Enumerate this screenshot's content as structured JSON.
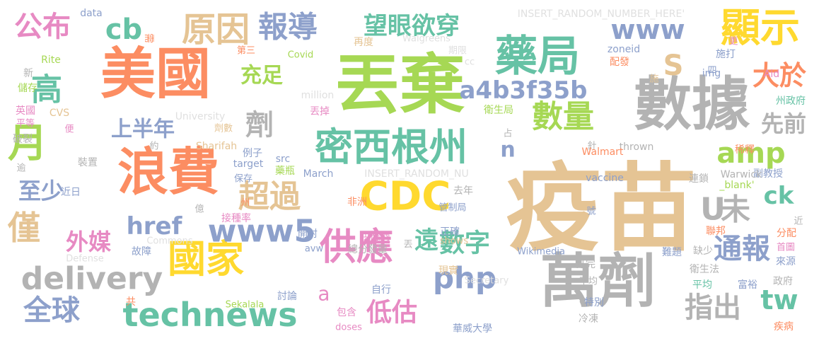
{
  "word_cloud": {
    "background_color": "#ffffff",
    "words": [
      {
        "text": "疫苗",
        "color": "#e5c494"
      },
      {
        "text": "丟棄",
        "color": "#a6d854"
      },
      {
        "text": "數據",
        "color": "#b3b3b3"
      },
      {
        "text": "美國",
        "color": "#fc8d62"
      },
      {
        "text": "萬劑",
        "color": "#b3b3b3"
      },
      {
        "text": "浪費",
        "color": "#fc8d62"
      },
      {
        "text": "藥局",
        "color": "#66c2a5"
      },
      {
        "text": "密西根州",
        "color": "#66c2a5"
      },
      {
        "text": "顯示",
        "color": "#ffd92f"
      },
      {
        "text": "CDC",
        "color": "#ffd92f"
      },
      {
        "text": "國家",
        "color": "#ffd92f"
      },
      {
        "text": "供應",
        "color": "#e78ac3"
      },
      {
        "text": "原因",
        "color": "#e5c494"
      },
      {
        "text": "delivery",
        "color": "#b3b3b3"
      },
      {
        "text": "technews",
        "color": "#66c2a5"
      },
      {
        "text": "www5",
        "color": "#8da0cb"
      },
      {
        "text": "數量",
        "color": "#a6d854"
      },
      {
        "text": "報導",
        "color": "#8da0cb"
      },
      {
        "text": "月",
        "color": "#a6d854"
      },
      {
        "text": "php",
        "color": "#8da0cb"
      },
      {
        "text": "a4b3f35b",
        "color": "#8da0cb"
      },
      {
        "text": "www",
        "color": "#8da0cb"
      },
      {
        "text": "超過",
        "color": "#e5c494"
      },
      {
        "text": "全球",
        "color": "#8da0cb"
      },
      {
        "text": "通報",
        "color": "#8da0cb"
      },
      {
        "text": "公布",
        "color": "#e78ac3"
      },
      {
        "text": "望眼欲穿",
        "color": "#66c2a5"
      },
      {
        "text": "cb",
        "color": "#66c2a5"
      },
      {
        "text": "高",
        "color": "#66c2a5"
      },
      {
        "text": "劑",
        "color": "#b3b3b3"
      },
      {
        "text": "指出",
        "color": "#b3b3b3"
      },
      {
        "text": "數字",
        "color": "#66c2a5"
      },
      {
        "text": "低估",
        "color": "#e78ac3"
      },
      {
        "text": "amp",
        "color": "#a6d854"
      },
      {
        "text": "僅",
        "color": "#e5c494"
      },
      {
        "text": "tw",
        "color": "#66c2a5"
      },
      {
        "text": "未",
        "color": "#b3b3b3"
      },
      {
        "text": "大於",
        "color": "#fc8d62"
      },
      {
        "text": "上半年",
        "color": "#8da0cb"
      },
      {
        "text": "遠",
        "color": "#66c2a5"
      },
      {
        "text": "href",
        "color": "#8da0cb"
      },
      {
        "text": "至少",
        "color": "#8da0cb"
      },
      {
        "text": "外媒",
        "color": "#e78ac3"
      },
      {
        "text": "充足",
        "color": "#a6d854"
      },
      {
        "text": "先前",
        "color": "#b3b3b3"
      },
      {
        "text": "S",
        "color": "#e5c494"
      },
      {
        "text": "U",
        "color": "#b3b3b3"
      },
      {
        "text": "ck",
        "color": "#66c2a5"
      },
      {
        "text": "n",
        "color": "#8da0cb"
      },
      {
        "text": "a",
        "color": "#e78ac3"
      },
      {
        "text": "INSERT_RANDOM_NUMBER_HERE'",
        "color": "#e0e0e0"
      },
      {
        "text": "INSERT_RANDOM_NU",
        "color": "#e0e0e0"
      },
      {
        "text": "data",
        "color": "#8da0cb"
      },
      {
        "text": "需",
        "color": "#fc8d62"
      },
      {
        "text": "Walgreens",
        "color": "#e0e0e0"
      },
      {
        "text": "zoneid",
        "color": "#8da0cb"
      },
      {
        "text": "施打",
        "color": "#8da0cb"
      },
      {
        "text": "Rite",
        "color": "#a6d854"
      },
      {
        "text": "第三",
        "color": "#fc8d62"
      },
      {
        "text": "Covid",
        "color": "#a6d854"
      },
      {
        "text": "再度",
        "color": "#e5c494"
      },
      {
        "text": "期限",
        "color": "#e0e0e0"
      },
      {
        "text": "cc",
        "color": "#e0e0e0"
      },
      {
        "text": "配發",
        "color": "#fc8d62"
      },
      {
        "text": "img",
        "color": "#8da0cb"
      },
      {
        "text": "Aid",
        "color": "#e78ac3"
      },
      {
        "text": "更",
        "color": "#e78ac3"
      },
      {
        "text": "四",
        "color": "#8da0cb"
      },
      {
        "text": "施",
        "color": "#e5c494"
      },
      {
        "text": "新",
        "color": "#b3b3b3"
      },
      {
        "text": "儲存",
        "color": "#a6d854"
      },
      {
        "text": "million",
        "color": "#e0e0e0"
      },
      {
        "text": "英國",
        "color": "#e78ac3"
      },
      {
        "text": "平等",
        "color": "#e78ac3"
      },
      {
        "text": "CVS",
        "color": "#e5c494"
      },
      {
        "text": "University",
        "color": "#e0e0e0"
      },
      {
        "text": "丟掉",
        "color": "#e78ac3"
      },
      {
        "text": "衛生局",
        "color": "#a6d854"
      },
      {
        "text": "州政府",
        "color": "#66c2a5"
      },
      {
        "text": "破裂",
        "color": "#b3b3b3"
      },
      {
        "text": "便",
        "color": "#e78ac3"
      },
      {
        "text": "劑數",
        "color": "#e5c494"
      },
      {
        "text": "Sharifah",
        "color": "#e5c494"
      },
      {
        "text": "占",
        "color": "#b3b3b3"
      },
      {
        "text": "約",
        "color": "#b3b3b3"
      },
      {
        "text": "例子",
        "color": "#8da0cb"
      },
      {
        "text": "針",
        "color": "#b3b3b3"
      },
      {
        "text": "thrown",
        "color": "#b3b3b3"
      },
      {
        "text": "稀釋",
        "color": "#fc8d62"
      },
      {
        "text": "裝置",
        "color": "#b3b3b3"
      },
      {
        "text": "src",
        "color": "#8da0cb"
      },
      {
        "text": "Walmart",
        "color": "#fc8d62"
      },
      {
        "text": "逾",
        "color": "#b3b3b3"
      },
      {
        "text": "target",
        "color": "#8da0cb"
      },
      {
        "text": "藥瓶",
        "color": "#a6d854"
      },
      {
        "text": "March",
        "color": "#8da0cb"
      },
      {
        "text": "副教授",
        "color": "#8da0cb"
      },
      {
        "text": "vaccine",
        "color": "#8da0cb"
      },
      {
        "text": "連鎖",
        "color": "#b3b3b3"
      },
      {
        "text": "Warwick",
        "color": "#b3b3b3"
      },
      {
        "text": "保存",
        "color": "#8da0cb"
      },
      {
        "text": "去年",
        "color": "#b3b3b3"
      },
      {
        "text": "_blank'",
        "color": "#a6d854"
      },
      {
        "text": "近日",
        "color": "#8da0cb"
      },
      {
        "text": "州",
        "color": "#fc8d62"
      },
      {
        "text": "非洲",
        "color": "#fc8d62"
      },
      {
        "text": "管制局",
        "color": "#8da0cb"
      },
      {
        "text": "億",
        "color": "#b3b3b3"
      },
      {
        "text": "號",
        "color": "#8da0cb"
      },
      {
        "text": "接種率",
        "color": "#e78ac3"
      },
      {
        "text": "近",
        "color": "#b3b3b3"
      },
      {
        "text": "Commons",
        "color": "#e0e0e0"
      },
      {
        "text": "開封",
        "color": "#8da0cb"
      },
      {
        "text": "正確",
        "color": "#8da0cb"
      },
      {
        "text": "聯邦",
        "color": "#fc8d62"
      },
      {
        "text": "供應商",
        "color": "#e78ac3"
      },
      {
        "text": "分配",
        "color": "#fc8d62"
      },
      {
        "text": "故障",
        "color": "#8da0cb"
      },
      {
        "text": "首圖",
        "color": "#e78ac3"
      },
      {
        "text": "丟",
        "color": "#b3b3b3"
      },
      {
        "text": "shows",
        "color": "#e5c494"
      },
      {
        "text": "avw",
        "color": "#8da0cb"
      },
      {
        "text": "總分發量",
        "color": "#b3b3b3"
      },
      {
        "text": "Wikimedia",
        "color": "#8da0cb"
      },
      {
        "text": "難題",
        "color": "#8da0cb"
      },
      {
        "text": "缺少",
        "color": "#b3b3b3"
      },
      {
        "text": "來源",
        "color": "#8da0cb"
      },
      {
        "text": "Defense",
        "color": "#e0e0e0"
      },
      {
        "text": "現實",
        "color": "#e5c494"
      },
      {
        "text": "打完",
        "color": "#b3b3b3"
      },
      {
        "text": "衛生法",
        "color": "#b3b3b3"
      },
      {
        "text": "不均",
        "color": "#b3b3b3"
      },
      {
        "text": "平均",
        "color": "#66c2a5"
      },
      {
        "text": "富裕",
        "color": "#8da0cb"
      },
      {
        "text": "政府",
        "color": "#b3b3b3"
      },
      {
        "text": "Secretary",
        "color": "#e0e0e0"
      },
      {
        "text": "自行",
        "color": "#8da0cb"
      },
      {
        "text": "討論",
        "color": "#8da0cb"
      },
      {
        "text": "共",
        "color": "#fc8d62"
      },
      {
        "text": "特別",
        "color": "#8da0cb"
      },
      {
        "text": "Sekalala",
        "color": "#a6d854"
      },
      {
        "text": "包含",
        "color": "#e78ac3"
      },
      {
        "text": "冷凍",
        "color": "#b3b3b3"
      },
      {
        "text": "doses",
        "color": "#e78ac3"
      },
      {
        "text": "華威大學",
        "color": "#8da0cb"
      },
      {
        "text": "疾病",
        "color": "#fc8d62"
      }
    ]
  }
}
